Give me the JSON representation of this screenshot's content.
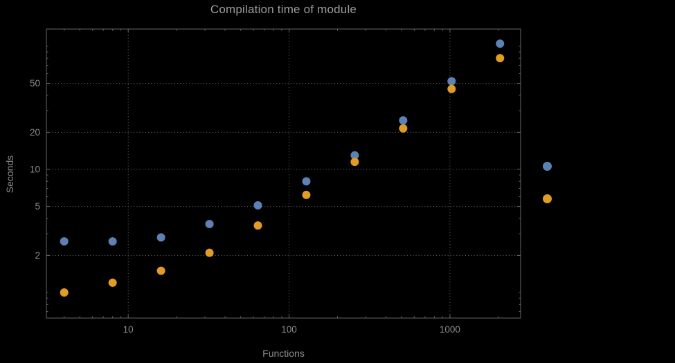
{
  "chart_data": {
    "type": "scatter",
    "title": "Compilation time of module",
    "xlabel": "Functions",
    "ylabel": "Seconds",
    "xscale": "log",
    "yscale": "log",
    "xlim": [
      3.1,
      2750
    ],
    "ylim": [
      0.62,
      138
    ],
    "x": [
      4,
      8,
      16,
      32,
      64,
      128,
      256,
      512,
      1024,
      2048
    ],
    "series": [
      {
        "name": "series-blue",
        "color": "#5E81B5",
        "values": [
          2.6,
          2.6,
          2.8,
          3.6,
          5.1,
          8.0,
          13.0,
          25.0,
          52.0,
          105.0
        ]
      },
      {
        "name": "series-orange",
        "color": "#E19C24",
        "values": [
          1.0,
          1.2,
          1.5,
          2.1,
          3.5,
          6.2,
          11.5,
          21.5,
          45.0,
          80.0
        ]
      }
    ],
    "x_ticks": [
      10,
      100,
      1000
    ],
    "x_tick_labels": [
      "10",
      "100",
      "1000"
    ],
    "y_ticks": [
      2,
      5,
      10,
      20,
      50
    ],
    "y_tick_labels": [
      "2",
      "5",
      "10",
      "20",
      "50"
    ],
    "grid": "dotted",
    "legend_position": "right",
    "colors": {
      "background": "#000000",
      "frame": "#666666",
      "grid": "#5e5e5e",
      "title": "#9c9c9c",
      "labels": "#8c8c8c",
      "tick_text": "#8c8c8c"
    }
  },
  "legend": {
    "markers": [
      {
        "name": "series-blue",
        "color": "#5E81B5"
      },
      {
        "name": "series-orange",
        "color": "#E19C24"
      }
    ]
  }
}
